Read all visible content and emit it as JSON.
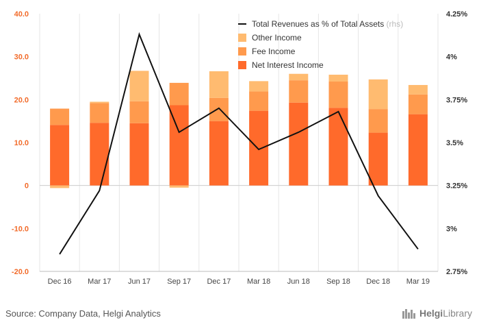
{
  "chart_data": {
    "type": "bar",
    "categories": [
      "Dec 16",
      "Mar 17",
      "Jun 17",
      "Sep 17",
      "Dec 17",
      "Mar 18",
      "Jun 18",
      "Sep 18",
      "Dec 18",
      "Mar 19"
    ],
    "series": [
      {
        "name": "Net Interest Income",
        "type": "bar",
        "axis": "left",
        "color": "#ff6a2b",
        "values": [
          14.1,
          14.6,
          14.5,
          18.7,
          15.0,
          17.4,
          19.3,
          18.1,
          12.3,
          16.6
        ]
      },
      {
        "name": "Fee Income",
        "type": "bar",
        "axis": "left",
        "color": "#ff9a4d",
        "values": [
          3.8,
          4.6,
          5.1,
          5.2,
          5.4,
          4.5,
          5.2,
          6.1,
          5.5,
          4.6
        ]
      },
      {
        "name": "Other Income",
        "type": "bar",
        "axis": "left",
        "color": "#ffbb70",
        "values": [
          -0.6,
          0.3,
          7.1,
          -0.5,
          6.2,
          2.4,
          1.5,
          1.6,
          6.9,
          2.2
        ]
      },
      {
        "name": "Total Revenues as % of Total Assets",
        "type": "line",
        "axis": "right",
        "color": "#111111",
        "values": [
          2.85,
          3.22,
          4.13,
          3.56,
          3.7,
          3.46,
          3.56,
          3.68,
          3.19,
          2.88
        ]
      }
    ],
    "legend": {
      "position": "top-right",
      "rhs_note": "(rhs)",
      "order": [
        "Total Revenues as % of Total Assets",
        "Other Income",
        "Fee Income",
        "Net Interest Income"
      ]
    },
    "y_left": {
      "min": -20,
      "max": 40,
      "ticks": [
        "40.0",
        "30.0",
        "20.0",
        "10.0",
        "0",
        "-10.0",
        "-20.0"
      ],
      "tick_values": [
        40,
        30,
        20,
        10,
        0,
        -10,
        -20
      ]
    },
    "y_right": {
      "min": 2.75,
      "max": 4.25,
      "ticks": [
        "4.25%",
        "4%",
        "3.75%",
        "3.5%",
        "3.25%",
        "3%",
        "2.75%"
      ],
      "tick_values": [
        4.25,
        4.0,
        3.75,
        3.5,
        3.25,
        3.0,
        2.75
      ]
    },
    "grid": {
      "vertical": true,
      "horizontal": false
    }
  },
  "footer": {
    "source": "Source: Company Data, Helgi Analytics",
    "logo_brand": "Helgi",
    "logo_suffix": "Library"
  },
  "colors": {
    "left_axis": "#f26b2a",
    "grid": "#e6e6e6",
    "zero_line": "#cccccc"
  }
}
